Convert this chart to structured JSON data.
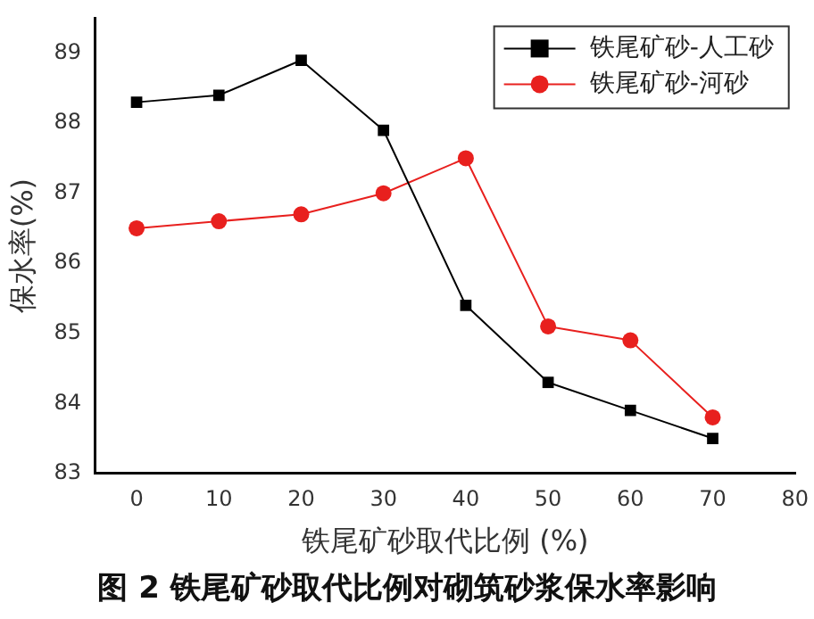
{
  "chart_data": {
    "type": "line",
    "xlabel": "铁尾矿砂取代比例 (%)",
    "ylabel": "保水率(%)",
    "annotations": [
      "图 2  铁尾矿砂取代比例对砌筑砂浆保水率影响"
    ],
    "x": [
      0,
      10,
      20,
      30,
      40,
      50,
      60,
      70
    ],
    "series": [
      {
        "name": "铁尾矿砂-人工砂",
        "color": "#000000",
        "marker": "square",
        "values": [
          88.3,
          88.4,
          88.9,
          87.9,
          85.4,
          84.3,
          83.9,
          83.5
        ]
      },
      {
        "name": "铁尾矿砂-河砂",
        "color": "#e8201e",
        "marker": "circle",
        "values": [
          86.5,
          86.6,
          86.7,
          87.0,
          87.5,
          85.1,
          84.9,
          83.8
        ]
      }
    ],
    "xlim": [
      -5,
      80
    ],
    "xticks": [
      0,
      10,
      20,
      30,
      40,
      50,
      60,
      70,
      80
    ],
    "ylim": [
      83,
      89.5
    ],
    "yticks": [
      83,
      84,
      85,
      86,
      87,
      88,
      89
    ],
    "grid": false,
    "legend": "top right",
    "line_style": "solid"
  }
}
